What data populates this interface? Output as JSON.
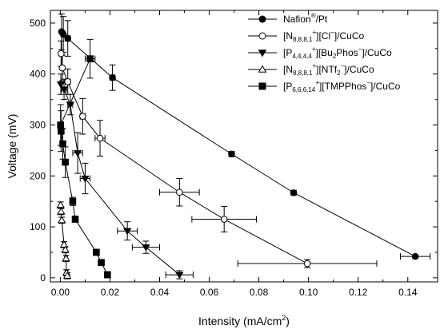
{
  "chart_data": {
    "type": "line",
    "xlabel": "Intensity (mA/cm",
    "xlabel_sup": "2",
    "xlabel_close": ")",
    "ylabel": "Voltage (mV)",
    "xlim": [
      -0.004,
      0.152
    ],
    "ylim": [
      -8,
      525
    ],
    "xticks": [
      0.0,
      0.02,
      0.04,
      0.06,
      0.08,
      0.1,
      0.12,
      0.14
    ],
    "xtick_labels": [
      "0.00",
      "0.02",
      "0.04",
      "0.06",
      "0.08",
      "0.10",
      "0.12",
      "0.14"
    ],
    "yticks": [
      0,
      100,
      200,
      300,
      400,
      500
    ],
    "ytick_labels": [
      "0",
      "100",
      "200",
      "300",
      "400",
      "500"
    ],
    "minor_x_step": 0.01,
    "minor_y_step": 50,
    "grid": false,
    "legend_position": "top-right",
    "series": [
      {
        "name": "Nafion®/Pt",
        "legend_parts": [
          [
            "Nafion",
            ""
          ],
          [
            "®",
            "sup"
          ],
          [
            "/Pt",
            ""
          ]
        ],
        "marker": "circle",
        "fill": "#000000",
        "points": [
          {
            "x": 0.0005,
            "y": 483,
            "ex": 0.0005,
            "ey": 35
          },
          {
            "x": 0.0012,
            "y": 478,
            "ex": 0.0008,
            "ey": 35
          },
          {
            "x": 0.003,
            "y": 470,
            "ex": 0.001,
            "ey": 35
          },
          {
            "x": 0.021,
            "y": 393,
            "ex": 0.001,
            "ey": 25
          },
          {
            "x": 0.069,
            "y": 243,
            "ex": 0.001,
            "ey": 5
          },
          {
            "x": 0.094,
            "y": 167,
            "ex": 0.001,
            "ey": 3
          },
          {
            "x": 0.143,
            "y": 42,
            "ex": 0.006,
            "ey": 3
          }
        ]
      },
      {
        "name": "[N8,8,8,1+][Cl−]/CuCo",
        "legend_parts": [
          [
            "[N",
            ""
          ],
          [
            "8,8,8,1",
            "sub"
          ],
          [
            "+",
            "sup"
          ],
          [
            "][Cl",
            ""
          ],
          [
            "−",
            "sup"
          ],
          [
            "]/CuCo",
            ""
          ]
        ],
        "marker": "circle",
        "fill": "#ffffff",
        "points": [
          {
            "x": 0.0003,
            "y": 440,
            "ex": 0.0003,
            "ey": 25
          },
          {
            "x": 0.0008,
            "y": 412,
            "ex": 0.0006,
            "ey": 25
          },
          {
            "x": 0.003,
            "y": 385,
            "ex": 0.001,
            "ey": 25
          },
          {
            "x": 0.009,
            "y": 317,
            "ex": 0.001,
            "ey": 35
          },
          {
            "x": 0.016,
            "y": 274,
            "ex": 0.002,
            "ey": 35
          },
          {
            "x": 0.048,
            "y": 168,
            "ex": 0.008,
            "ey": 27
          },
          {
            "x": 0.066,
            "y": 115,
            "ex": 0.013,
            "ey": 25
          },
          {
            "x": 0.0995,
            "y": 28,
            "ex": 0.028,
            "ey": 8
          }
        ]
      },
      {
        "name": "[P4,4,4,4+][Bu2Phos−]/CuCo",
        "legend_parts": [
          [
            "[P",
            ""
          ],
          [
            "4,4,4,4",
            "sub"
          ],
          [
            "+",
            "sup"
          ],
          [
            "][Bu",
            ""
          ],
          [
            "2",
            "sub"
          ],
          [
            "Phos",
            ""
          ],
          [
            "−",
            "sup"
          ],
          [
            "]/CuCo",
            ""
          ]
        ],
        "marker": "triangle-down",
        "fill": "#000000",
        "points": [
          {
            "x": 0.0002,
            "y": 380,
            "ex": 0.0002,
            "ey": 20
          },
          {
            "x": 0.0015,
            "y": 370,
            "ex": 0.001,
            "ey": 20
          },
          {
            "x": 0.004,
            "y": 340,
            "ex": 0.001,
            "ey": 20
          },
          {
            "x": 0.007,
            "y": 245,
            "ex": 0.002,
            "ey": 40
          },
          {
            "x": 0.01,
            "y": 195,
            "ex": 0.002,
            "ey": 30
          },
          {
            "x": 0.027,
            "y": 92,
            "ex": 0.004,
            "ey": 18
          },
          {
            "x": 0.0345,
            "y": 60,
            "ex": 0.0055,
            "ey": 12
          },
          {
            "x": 0.048,
            "y": 6,
            "ex": 0.0055,
            "ey": 8
          }
        ]
      },
      {
        "name": "[N8,8,8,1+][NTf2−]/CuCo",
        "legend_parts": [
          [
            "[N",
            ""
          ],
          [
            "8,8,8,1",
            "sub"
          ],
          [
            "+",
            "sup"
          ],
          [
            "][NTf",
            ""
          ],
          [
            "2",
            "sub"
          ],
          [
            "−",
            "sup"
          ],
          [
            "]/CuCo",
            ""
          ]
        ],
        "marker": "triangle-up",
        "fill": "#ffffff",
        "points": [
          {
            "x": 0.0001,
            "y": 143,
            "ex": 0.0001,
            "ey": 6
          },
          {
            "x": 0.0003,
            "y": 130,
            "ex": 0.0002,
            "ey": 6
          },
          {
            "x": 0.0006,
            "y": 113,
            "ex": 0.0004,
            "ey": 6
          },
          {
            "x": 0.0015,
            "y": 65,
            "ex": 0.0006,
            "ey": 6
          },
          {
            "x": 0.002,
            "y": 55,
            "ex": 0.0006,
            "ey": 6
          },
          {
            "x": 0.0023,
            "y": 38,
            "ex": 0.0006,
            "ey": 6
          },
          {
            "x": 0.0025,
            "y": 10,
            "ex": 0.0006,
            "ey": 6
          },
          {
            "x": 0.0028,
            "y": 4,
            "ex": 0.0006,
            "ey": 6
          }
        ]
      },
      {
        "name": "[P6,6,6,14+][TMPPhos−]/CuCo",
        "legend_parts": [
          [
            "[P",
            ""
          ],
          [
            "6,6,6,14",
            "sub"
          ],
          [
            "+",
            "sup"
          ],
          [
            "][TMPPhos",
            ""
          ],
          [
            "−",
            "sup"
          ],
          [
            "]/CuCo",
            ""
          ]
        ],
        "marker": "square",
        "fill": "#000000",
        "points": [
          {
            "x": 0.0001,
            "y": 300,
            "ex": 0.0001,
            "ey": 40
          },
          {
            "x": 0.0003,
            "y": 288,
            "ex": 0.0002,
            "ey": 40
          },
          {
            "x": 0.001,
            "y": 263,
            "ex": 0.0005,
            "ey": 30
          },
          {
            "x": 0.002,
            "y": 227,
            "ex": 0.0005,
            "ey": 30
          },
          {
            "x": 0.005,
            "y": 150,
            "ex": 0.0008,
            "ey": 8
          },
          {
            "x": 0.012,
            "y": 430,
            "ex": 0.002,
            "ey": 38
          },
          {
            "x": 0.006,
            "y": 115,
            "ex": 0.0008,
            "ey": 6
          },
          {
            "x": 0.0145,
            "y": 50,
            "ex": 0.0008,
            "ey": 6
          },
          {
            "x": 0.0165,
            "y": 30,
            "ex": 0.0008,
            "ey": 6
          },
          {
            "x": 0.019,
            "y": 6,
            "ex": 0.0008,
            "ey": 6
          }
        ]
      }
    ]
  }
}
